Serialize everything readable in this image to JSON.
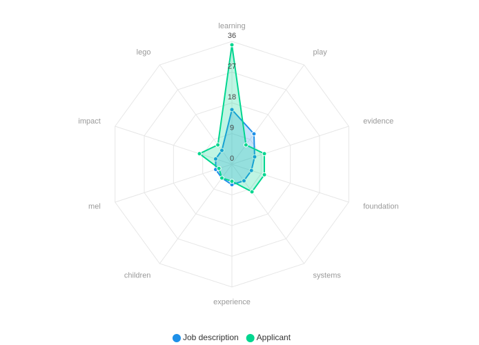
{
  "chart_data": {
    "type": "radar",
    "categories": [
      "learning",
      "play",
      "evidence",
      "foundation",
      "systems",
      "experience",
      "children",
      "mel",
      "impact",
      "lego"
    ],
    "series": [
      {
        "name": "Job description",
        "color": "#1e90e8",
        "values": [
          16,
          11,
          7,
          6,
          6,
          6,
          5,
          5,
          5,
          5
        ]
      },
      {
        "name": "Applicant",
        "color": "#00d68f",
        "values": [
          35,
          7,
          10,
          10,
          10,
          5,
          5,
          4,
          10,
          7
        ]
      }
    ],
    "ylim": [
      0,
      36
    ],
    "yticks": [
      0,
      9,
      18,
      27,
      36
    ],
    "grid": true,
    "legend": "bottom"
  }
}
